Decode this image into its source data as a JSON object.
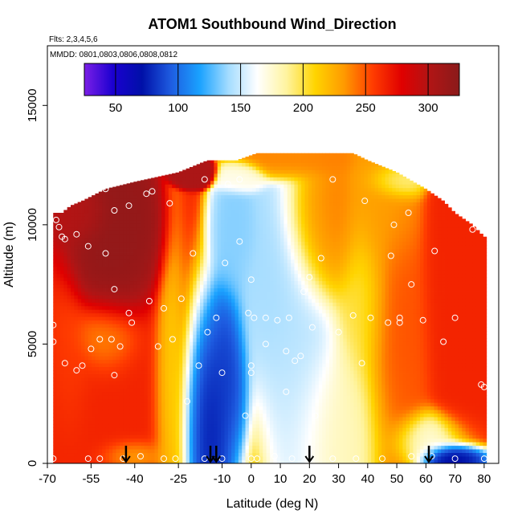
{
  "chart_data": {
    "type": "heatmap",
    "title": "ATOM1 Southbound Wind_Direction",
    "subtitle_flights": "Flts: 2,3,4,5,6",
    "subtitle_dates": "MMDD: 0801,0803,0806,0808,0812",
    "xlabel": "Latitude (deg N)",
    "ylabel": "Altitude (m)",
    "xlim": [
      -70,
      85
    ],
    "ylim": [
      0,
      17500
    ],
    "x_ticks": [
      -70,
      -55,
      -40,
      -25,
      -10,
      0,
      10,
      20,
      30,
      40,
      50,
      60,
      70,
      80
    ],
    "y_ticks": [
      0,
      5000,
      10000,
      15000
    ],
    "colorbar": {
      "min": 25,
      "max": 325,
      "ticks": [
        50,
        100,
        150,
        200,
        250,
        300
      ],
      "colors": [
        "#7b1fe6",
        "#1a00d0",
        "#0010a8",
        "#1e5ce0",
        "#1aa2ff",
        "#a4dcff",
        "#ffffff",
        "#fff4a0",
        "#ffd400",
        "#ff9a00",
        "#ff3c00",
        "#e00000",
        "#b01515",
        "#8a1a1a"
      ]
    },
    "field": {
      "x_range": [
        -68,
        80
      ],
      "cell_lat": 1.2,
      "cell_alt": 150,
      "alt_top_profile": [
        [
          -68,
          10500
        ],
        [
          -65,
          10500
        ],
        [
          -62,
          10800
        ],
        [
          -58,
          11000
        ],
        [
          -50,
          11500
        ],
        [
          -40,
          11800
        ],
        [
          -25,
          12200
        ],
        [
          -15,
          12700
        ],
        [
          -5,
          12700
        ],
        [
          2,
          13000
        ],
        [
          35,
          13000
        ],
        [
          40,
          12700
        ],
        [
          50,
          12200
        ],
        [
          60,
          11500
        ],
        [
          66,
          11000
        ],
        [
          70,
          10500
        ],
        [
          76,
          10000
        ],
        [
          80,
          9500
        ]
      ],
      "blobs": [
        {
          "lat": -45,
          "alt": 2000,
          "slat": 30,
          "salt": 4000,
          "val": 265,
          "w": 1.0
        },
        {
          "lat": -48,
          "alt": 8500,
          "slat": 9,
          "salt": 1800,
          "val": 320,
          "w": 3.0
        },
        {
          "lat": -50,
          "alt": 5500,
          "slat": 8,
          "salt": 1200,
          "val": 225,
          "w": 1.2
        },
        {
          "lat": -62,
          "alt": 4500,
          "slat": 5,
          "salt": 2500,
          "val": 255,
          "w": 1.0
        },
        {
          "lat": -40,
          "alt": 300,
          "slat": 8,
          "salt": 500,
          "val": 215,
          "w": 1.2
        },
        {
          "lat": -28,
          "alt": 2500,
          "slat": 4,
          "salt": 3500,
          "val": 185,
          "w": 1.0
        },
        {
          "lat": -15,
          "alt": 1500,
          "slat": 6,
          "salt": 3000,
          "val": 58,
          "w": 3.0
        },
        {
          "lat": -8,
          "alt": 3500,
          "slat": 5,
          "salt": 2500,
          "val": 75,
          "w": 2.0
        },
        {
          "lat": 5,
          "alt": 6500,
          "slat": 8,
          "salt": 2500,
          "val": 140,
          "w": 1.5
        },
        {
          "lat": -5,
          "alt": 9000,
          "slat": 5,
          "salt": 1500,
          "val": 135,
          "w": 1.2
        },
        {
          "lat": 15,
          "alt": 5000,
          "slat": 10,
          "salt": 4000,
          "val": 145,
          "w": 1.5
        },
        {
          "lat": 30,
          "alt": 2000,
          "slat": 12,
          "salt": 2500,
          "val": 180,
          "w": 1.0
        },
        {
          "lat": 25,
          "alt": 9500,
          "slat": 8,
          "salt": 2000,
          "val": 240,
          "w": 1.5
        },
        {
          "lat": 38,
          "alt": 6500,
          "slat": 7,
          "salt": 2500,
          "val": 200,
          "w": 1.0
        },
        {
          "lat": 50,
          "alt": 5000,
          "slat": 8,
          "salt": 4000,
          "val": 250,
          "w": 1.2
        },
        {
          "lat": 45,
          "alt": 10500,
          "slat": 8,
          "salt": 2000,
          "val": 230,
          "w": 1.0
        },
        {
          "lat": 70,
          "alt": 7000,
          "slat": 7,
          "salt": 4000,
          "val": 265,
          "w": 1.5
        },
        {
          "lat": 68,
          "alt": 200,
          "slat": 6,
          "salt": 400,
          "val": 60,
          "w": 2.5
        },
        {
          "lat": 60,
          "alt": 1000,
          "slat": 8,
          "salt": 800,
          "val": 170,
          "w": 1.2
        },
        {
          "lat": -20,
          "alt": 12200,
          "slat": 4,
          "salt": 300,
          "val": 305,
          "w": 2.0
        },
        {
          "lat": -3,
          "alt": 12000,
          "slat": 5,
          "salt": 400,
          "val": 170,
          "w": 1.0
        },
        {
          "lat": 15,
          "alt": 12700,
          "slat": 12,
          "salt": 500,
          "val": 240,
          "w": 1.0
        },
        {
          "lat": 50,
          "alt": 11800,
          "slat": 6,
          "salt": 500,
          "val": 180,
          "w": 1.0
        },
        {
          "lat": -58,
          "alt": 10200,
          "slat": 6,
          "salt": 800,
          "val": 300,
          "w": 1.5
        }
      ]
    },
    "flight_points": [
      [
        -67,
        10200
      ],
      [
        -66,
        9900
      ],
      [
        -65,
        9500
      ],
      [
        -64,
        9400
      ],
      [
        -60,
        9600
      ],
      [
        -56,
        9100
      ],
      [
        -60,
        11100
      ],
      [
        -50,
        11500
      ],
      [
        -47,
        10600
      ],
      [
        -42,
        10800
      ],
      [
        -36,
        11300
      ],
      [
        -34,
        11400
      ],
      [
        -28,
        10900
      ],
      [
        -50,
        8800
      ],
      [
        -47,
        7300
      ],
      [
        -42,
        6300
      ],
      [
        -41,
        5900
      ],
      [
        -35,
        6800
      ],
      [
        -30,
        6500
      ],
      [
        -24,
        6900
      ],
      [
        -20,
        8800
      ],
      [
        -27,
        5200
      ],
      [
        -32,
        4900
      ],
      [
        -45,
        4900
      ],
      [
        -48,
        5200
      ],
      [
        -52,
        5200
      ],
      [
        -55,
        4800
      ],
      [
        -58,
        4100
      ],
      [
        -60,
        3900
      ],
      [
        -47,
        3700
      ],
      [
        -68,
        5800
      ],
      [
        -68,
        5100
      ],
      [
        -64,
        4200
      ],
      [
        -18,
        4100
      ],
      [
        -10,
        3800
      ],
      [
        0,
        4100
      ],
      [
        0,
        3800
      ],
      [
        -15,
        5500
      ],
      [
        -12,
        6100
      ],
      [
        -9,
        8400
      ],
      [
        -4,
        9300
      ],
      [
        0,
        7700
      ],
      [
        -1,
        6300
      ],
      [
        1,
        6100
      ],
      [
        5,
        6100
      ],
      [
        9,
        6000
      ],
      [
        13,
        6100
      ],
      [
        12,
        4700
      ],
      [
        15,
        4300
      ],
      [
        17,
        4500
      ],
      [
        21,
        5700
      ],
      [
        30,
        5500
      ],
      [
        35,
        6200
      ],
      [
        41,
        6100
      ],
      [
        47,
        5900
      ],
      [
        51,
        6100
      ],
      [
        51,
        5900
      ],
      [
        38,
        4200
      ],
      [
        5,
        5000
      ],
      [
        -22,
        2600
      ],
      [
        -16,
        11900
      ],
      [
        -4,
        11900
      ],
      [
        -8,
        11700
      ],
      [
        28,
        11900
      ],
      [
        39,
        11000
      ],
      [
        48,
        8700
      ],
      [
        54,
        10500
      ],
      [
        20,
        7800
      ],
      [
        24,
        8600
      ],
      [
        18,
        7200
      ],
      [
        -2,
        2000
      ],
      [
        12,
        3000
      ],
      [
        22,
        2000
      ],
      [
        -68,
        200
      ],
      [
        -56,
        200
      ],
      [
        -52,
        200
      ],
      [
        -44,
        200
      ],
      [
        -38,
        300
      ],
      [
        -30,
        200
      ],
      [
        -26,
        200
      ],
      [
        -16,
        200
      ],
      [
        -10,
        200
      ],
      [
        0,
        200
      ],
      [
        2,
        200
      ],
      [
        8,
        300
      ],
      [
        14,
        200
      ],
      [
        20,
        200
      ],
      [
        28,
        200
      ],
      [
        36,
        200
      ],
      [
        45,
        200
      ],
      [
        55,
        300
      ],
      [
        62,
        300
      ],
      [
        70,
        200
      ],
      [
        80,
        200
      ],
      [
        79,
        3300
      ],
      [
        80,
        3200
      ],
      [
        78,
        10000
      ],
      [
        76,
        9800
      ],
      [
        70,
        6100
      ],
      [
        66,
        5100
      ],
      [
        59,
        6000
      ],
      [
        63,
        8900
      ],
      [
        55,
        7500
      ],
      [
        49,
        10000
      ]
    ],
    "arrows": [
      -43,
      -14,
      -12,
      20,
      61
    ]
  }
}
